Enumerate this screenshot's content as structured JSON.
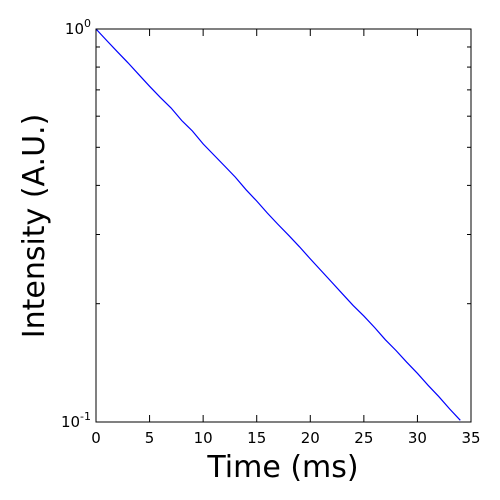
{
  "chart_data": {
    "type": "line",
    "xlabel": "Time (ms)",
    "ylabel": "Intensity (A.U.)",
    "xlim": [
      0,
      35
    ],
    "ylim": [
      0.1,
      1.0
    ],
    "yscale": "log",
    "grid": false,
    "x_ticks": [
      0,
      5,
      10,
      15,
      20,
      25,
      30,
      35
    ],
    "y_ticks": [
      {
        "value": 1.0,
        "base": "10",
        "exp": "0"
      },
      {
        "value": 0.1,
        "base": "10",
        "exp": "-1"
      }
    ],
    "series": [
      {
        "color": "#0000ff",
        "x": [
          0.0,
          1.0,
          2.0,
          3.0,
          4.0,
          5.0,
          6.0,
          7.0,
          8.0,
          9.0,
          10.0,
          11.0,
          12.0,
          13.0,
          14.0,
          15.0,
          16.0,
          17.0,
          18.0,
          19.0,
          20.0,
          21.0,
          22.0,
          23.0,
          24.0,
          25.0,
          26.0,
          27.0,
          28.0,
          29.0,
          30.0,
          31.0,
          32.0,
          33.0,
          34.0
        ],
        "y": [
          1.0,
          0.935,
          0.875,
          0.82,
          0.765,
          0.715,
          0.67,
          0.63,
          0.585,
          0.55,
          0.51,
          0.478,
          0.448,
          0.42,
          0.39,
          0.365,
          0.34,
          0.318,
          0.298,
          0.279,
          0.26,
          0.243,
          0.227,
          0.212,
          0.198,
          0.186,
          0.174,
          0.162,
          0.152,
          0.142,
          0.133,
          0.124,
          0.116,
          0.108,
          0.101
        ]
      }
    ]
  }
}
